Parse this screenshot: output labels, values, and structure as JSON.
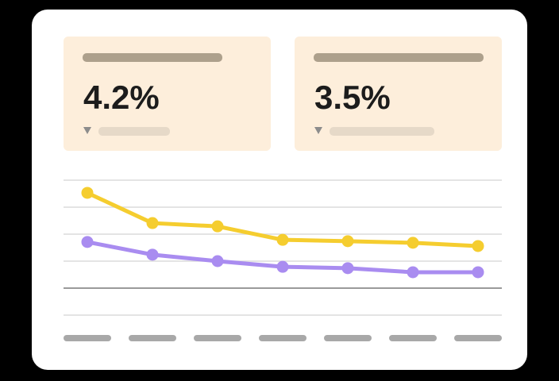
{
  "kpis": [
    {
      "value": "4.2%"
    },
    {
      "value": "3.5%"
    }
  ],
  "chart_data": {
    "type": "line",
    "categories": [
      null,
      null,
      null,
      null,
      null,
      null,
      null
    ],
    "series": [
      {
        "color": "#f5cd2f",
        "values": [
          3.53,
          2.41,
          2.29,
          1.79,
          1.74,
          1.68,
          1.56
        ]
      },
      {
        "color": "#a98cf0",
        "values": [
          1.71,
          1.24,
          1.0,
          0.79,
          0.74,
          0.59,
          0.59
        ]
      }
    ],
    "ylim": [
      -1,
      4
    ],
    "yticks": [
      -1,
      0,
      1,
      2,
      3,
      4
    ],
    "grid": true
  }
}
